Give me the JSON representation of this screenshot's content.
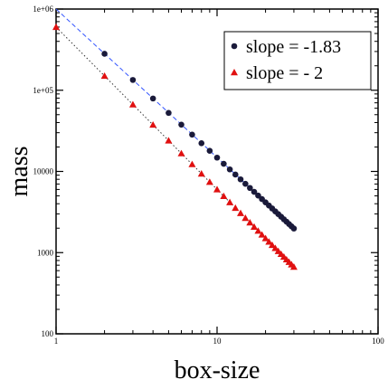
{
  "chart_data": {
    "type": "scatter",
    "xlabel": "box-size",
    "ylabel": "mass",
    "xscale": "log",
    "yscale": "log",
    "xlim": [
      1,
      100
    ],
    "ylim": [
      100,
      1000000
    ],
    "x_ticks": [
      {
        "value": 1,
        "label": "1"
      },
      {
        "value": 10,
        "label": "10"
      },
      {
        "value": 100,
        "label": "100"
      }
    ],
    "y_ticks": [
      {
        "value": 100,
        "label": "100"
      },
      {
        "value": 1000,
        "label": "1000"
      },
      {
        "value": 10000,
        "label": "10000"
      },
      {
        "value": 100000,
        "label": "1e+05"
      },
      {
        "value": 1000000,
        "label": "1e+06"
      }
    ],
    "grid": false,
    "legend_position": "top-right",
    "series": [
      {
        "name": "slope = -1.83",
        "color": "#1a1a3a",
        "marker": "circle",
        "x": [
          2,
          3,
          4,
          5,
          6,
          7,
          8,
          9,
          10,
          11,
          12,
          13,
          14,
          15,
          16,
          17,
          18,
          19,
          20,
          21,
          22,
          23,
          24,
          25,
          26,
          27,
          28,
          29,
          30
        ],
        "fit": {
          "slope": -1.83,
          "x": [
            1,
            30
          ],
          "y": [
            1000000,
            2000
          ],
          "color": "#3355ff",
          "dash": "dashed"
        }
      },
      {
        "name": "slope = - 2",
        "color": "#e01010",
        "marker": "triangle",
        "x": [
          1,
          2,
          3,
          4,
          5,
          6,
          7,
          8,
          9,
          10,
          11,
          12,
          13,
          14,
          15,
          16,
          17,
          18,
          19,
          20,
          21,
          22,
          23,
          24,
          25,
          26,
          27,
          28,
          29,
          30
        ],
        "fit": {
          "slope": -2,
          "x": [
            1,
            30
          ],
          "y": [
            600000,
            667
          ],
          "color": "#333333",
          "dash": "dotted"
        }
      }
    ]
  }
}
